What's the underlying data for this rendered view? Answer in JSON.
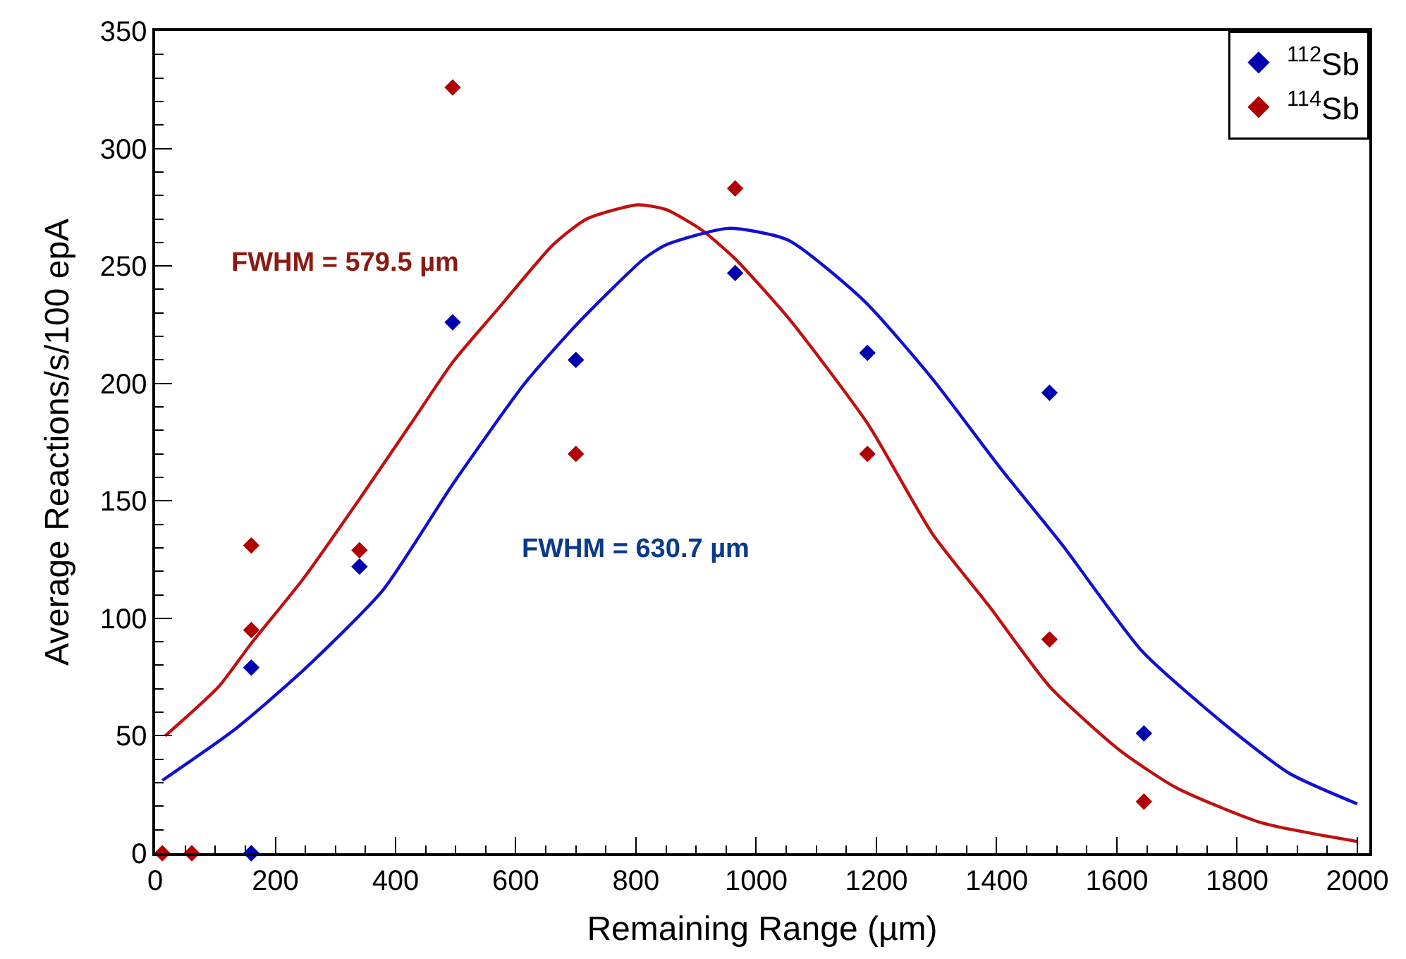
{
  "chart_data": {
    "type": "scatter",
    "xlabel": "Remaining Range (µm)",
    "ylabel": "Average Reactions/s/100 epA",
    "xlim": [
      0,
      2020
    ],
    "xticks": [
      0,
      200,
      400,
      600,
      800,
      1000,
      1200,
      1400,
      1600,
      1800,
      2000
    ],
    "ylim": [
      0,
      350
    ],
    "yticks": [
      0,
      50,
      100,
      150,
      200,
      250,
      300,
      350
    ],
    "legend": "top right",
    "marker": "diamond",
    "annotations": [
      "FWHM = 579.5 µm",
      "FWHM = 630.7 µm"
    ],
    "series": [
      {
        "name": "$^{112}$Sb",
        "color": "#0000b0",
        "x": [
          160,
          160,
          340,
          495,
          700,
          965,
          1185,
          1488,
          1645
        ],
        "values": [
          0,
          79,
          122,
          226,
          210,
          247,
          213,
          196,
          51
        ]
      },
      {
        "name": "$^{114}$Sb",
        "color": "#b00000",
        "x": [
          12,
          61,
          160,
          160,
          340,
          495,
          700,
          965,
          1185,
          1488,
          1645
        ],
        "values": [
          0,
          0,
          131,
          95,
          129,
          326,
          170,
          283,
          170,
          91,
          22
        ]
      },
      {
        "color": "#c01010",
        "type": "line",
        "marker": "none",
        "x": [
          17,
          106,
          159,
          247,
          338,
          426,
          495,
          568,
          662,
          718,
          803,
          850,
          911,
          965,
          1053,
          1185,
          1293,
          1388,
          1488,
          1604,
          1698,
          1840,
          2000
        ],
        "values": [
          50,
          71,
          89,
          117,
          150,
          183,
          209,
          231,
          259,
          270,
          276,
          274,
          265,
          253,
          228,
          183,
          136,
          105,
          71,
          44,
          28,
          13,
          5
        ]
      },
      {
        "color": "#1010d0",
        "type": "line",
        "marker": "none",
        "x": [
          12,
          134,
          247,
          379,
          495,
          615,
          701,
          813,
          850,
          954,
          1053,
          1180,
          1293,
          1406,
          1510,
          1642,
          1774,
          1887,
          2000
        ],
        "values": [
          31,
          53,
          78,
          112,
          157,
          200,
          225,
          253,
          259,
          266,
          261,
          235,
          202,
          164,
          131,
          86,
          56,
          34,
          21
        ]
      }
    ]
  }
}
